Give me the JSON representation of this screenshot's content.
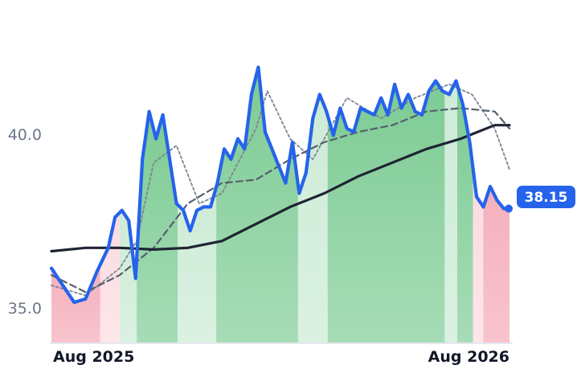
{
  "chart_data": {
    "type": "line",
    "x_start": "2025-07-21",
    "x_end": "2026-08-28",
    "xticks": [
      {
        "date": "2025-08-01",
        "label": "Aug 2025"
      },
      {
        "date": "2026-08-01",
        "label": "Aug 2026"
      }
    ],
    "ylim": [
      34.2,
      43.8
    ],
    "yticks": [
      {
        "value": 35.0,
        "label": "35.0"
      },
      {
        "value": 40.0,
        "label": "40.0"
      }
    ],
    "grid": false,
    "last_value": 38.15,
    "last_value_label": "38.15",
    "colors": {
      "price": "#2563eb",
      "long_ma": "#1e2433",
      "mid_ma": "#555f6e",
      "short_ma": "#7b8494",
      "up_strong": "#86cf9c",
      "up_light": "#d4eedc",
      "down_strong": "#f6b9c3",
      "down_light": "#fcdfe4",
      "badge": "#2563eb"
    },
    "regimes": [
      {
        "start": "2025-07-21",
        "end": "2025-09-02",
        "state": "down_strong"
      },
      {
        "start": "2025-09-02",
        "end": "2025-09-19",
        "state": "down_light"
      },
      {
        "start": "2025-09-19",
        "end": "2025-10-04",
        "state": "up_light"
      },
      {
        "start": "2025-10-04",
        "end": "2025-11-09",
        "state": "up_strong"
      },
      {
        "start": "2025-11-09",
        "end": "2025-12-13",
        "state": "up_light"
      },
      {
        "start": "2025-12-13",
        "end": "2026-02-23",
        "state": "up_strong"
      },
      {
        "start": "2026-02-23",
        "end": "2026-03-21",
        "state": "up_light"
      },
      {
        "start": "2026-03-21",
        "end": "2026-07-02",
        "state": "up_strong"
      },
      {
        "start": "2026-07-02",
        "end": "2026-07-13",
        "state": "up_light"
      },
      {
        "start": "2026-07-13",
        "end": "2026-07-27",
        "state": "up_strong"
      },
      {
        "start": "2026-07-27",
        "end": "2026-08-05",
        "state": "down_light"
      },
      {
        "start": "2026-08-05",
        "end": "2026-08-28",
        "state": "down_strong"
      }
    ],
    "series": [
      {
        "key": "price",
        "x": [
          "2025-07-21",
          "2025-07-31",
          "2025-08-10",
          "2025-08-20",
          "2025-08-30",
          "2025-09-09",
          "2025-09-15",
          "2025-09-21",
          "2025-09-27",
          "2025-10-03",
          "2025-10-09",
          "2025-10-15",
          "2025-10-21",
          "2025-10-27",
          "2025-11-02",
          "2025-11-08",
          "2025-11-14",
          "2025-11-20",
          "2025-11-26",
          "2025-12-02",
          "2025-12-08",
          "2025-12-14",
          "2025-12-20",
          "2025-12-26",
          "2026-01-01",
          "2026-01-07",
          "2026-01-13",
          "2026-01-19",
          "2026-01-25",
          "2026-01-31",
          "2026-02-06",
          "2026-02-12",
          "2026-02-18",
          "2026-02-24",
          "2026-03-02",
          "2026-03-08",
          "2026-03-14",
          "2026-03-20",
          "2026-03-26",
          "2026-04-01",
          "2026-04-07",
          "2026-04-13",
          "2026-04-19",
          "2026-04-25",
          "2026-05-01",
          "2026-05-07",
          "2026-05-13",
          "2026-05-19",
          "2026-05-25",
          "2026-05-31",
          "2026-06-06",
          "2026-06-12",
          "2026-06-18",
          "2026-06-24",
          "2026-06-30",
          "2026-07-06",
          "2026-07-12",
          "2026-07-18",
          "2026-07-24",
          "2026-07-30",
          "2026-08-05",
          "2026-08-11",
          "2026-08-17",
          "2026-08-23",
          "2026-08-28"
        ],
        "values": [
          36.4,
          35.9,
          35.4,
          35.5,
          36.3,
          37.0,
          37.9,
          38.1,
          37.8,
          36.1,
          39.6,
          41.0,
          40.2,
          40.9,
          39.6,
          38.3,
          38.1,
          37.5,
          38.1,
          38.2,
          38.2,
          38.9,
          39.9,
          39.6,
          40.2,
          39.9,
          41.5,
          42.3,
          40.4,
          39.9,
          39.4,
          38.9,
          40.1,
          38.6,
          39.2,
          40.8,
          41.5,
          41.0,
          40.3,
          41.1,
          40.5,
          40.4,
          41.1,
          41.0,
          40.9,
          41.4,
          40.9,
          41.8,
          41.1,
          41.5,
          41.0,
          40.9,
          41.6,
          41.9,
          41.6,
          41.5,
          41.9,
          41.2,
          40.1,
          38.5,
          38.2,
          38.8,
          38.4,
          38.15,
          38.15
        ]
      },
      {
        "key": "long_ma",
        "x": [
          "2025-07-21",
          "2025-08-20",
          "2025-09-19",
          "2025-10-19",
          "2025-11-18",
          "2025-12-18",
          "2026-01-17",
          "2026-02-16",
          "2026-03-18",
          "2026-04-17",
          "2026-05-17",
          "2026-06-16",
          "2026-07-16",
          "2026-08-15",
          "2026-08-28"
        ],
        "values": [
          36.9,
          37.0,
          37.0,
          36.95,
          37.0,
          37.2,
          37.7,
          38.2,
          38.6,
          39.1,
          39.5,
          39.9,
          40.2,
          40.6,
          40.6
        ]
      },
      {
        "key": "mid_ma",
        "x": [
          "2025-07-21",
          "2025-08-20",
          "2025-09-19",
          "2025-10-19",
          "2025-11-18",
          "2025-12-18",
          "2026-01-17",
          "2026-02-16",
          "2026-03-18",
          "2026-04-17",
          "2026-05-17",
          "2026-06-16",
          "2026-07-16",
          "2026-08-15",
          "2026-08-28"
        ],
        "values": [
          36.2,
          35.7,
          36.2,
          37.0,
          38.3,
          38.9,
          39.0,
          39.6,
          40.1,
          40.4,
          40.6,
          41.0,
          41.1,
          41.0,
          40.5
        ]
      },
      {
        "key": "short_ma",
        "x": [
          "2025-07-21",
          "2025-08-20",
          "2025-09-19",
          "2025-10-04",
          "2025-10-19",
          "2025-11-08",
          "2025-11-28",
          "2025-12-18",
          "2026-01-17",
          "2026-01-27",
          "2026-02-16",
          "2026-03-08",
          "2026-04-07",
          "2026-05-07",
          "2026-06-06",
          "2026-07-06",
          "2026-07-26",
          "2026-08-15",
          "2026-08-28"
        ],
        "values": [
          35.9,
          35.6,
          36.4,
          37.2,
          39.5,
          40.0,
          38.3,
          38.6,
          40.5,
          41.6,
          40.2,
          39.6,
          41.4,
          40.8,
          41.4,
          41.8,
          41.5,
          40.5,
          39.3
        ]
      }
    ]
  }
}
